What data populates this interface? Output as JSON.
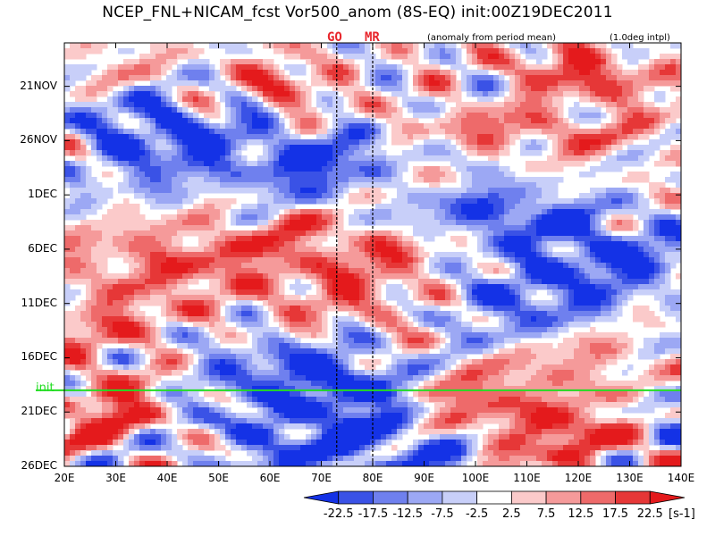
{
  "chart_data": {
    "type": "heatmap",
    "title": "NCEP_FNL+NICAM_fcst Vor500_anom (8S-EQ) init:00Z19DEC2011",
    "note_left": "(anomaly from period mean)",
    "note_right": "(1.0deg intpl)",
    "x_axis": {
      "range": [
        20,
        140
      ],
      "ticks": [
        {
          "value": 20,
          "label": "20E"
        },
        {
          "value": 30,
          "label": "30E"
        },
        {
          "value": 40,
          "label": "40E"
        },
        {
          "value": 50,
          "label": "50E"
        },
        {
          "value": 60,
          "label": "60E"
        },
        {
          "value": 70,
          "label": "70E"
        },
        {
          "value": 80,
          "label": "80E"
        },
        {
          "value": 90,
          "label": "90E"
        },
        {
          "value": 100,
          "label": "100E"
        },
        {
          "value": 110,
          "label": "110E"
        },
        {
          "value": 120,
          "label": "120E"
        },
        {
          "value": 130,
          "label": "130E"
        },
        {
          "value": 140,
          "label": "140E"
        }
      ]
    },
    "y_axis": {
      "range": [
        "2011-11-17",
        "2011-12-26"
      ],
      "direction": "time increases downward",
      "ticks": [
        {
          "date": "2011-11-21",
          "label": "21NOV"
        },
        {
          "date": "2011-11-26",
          "label": "26NOV"
        },
        {
          "date": "2011-12-01",
          "label": "1DEC"
        },
        {
          "date": "2011-12-06",
          "label": "6DEC"
        },
        {
          "date": "2011-12-11",
          "label": "11DEC"
        },
        {
          "date": "2011-12-16",
          "label": "16DEC"
        },
        {
          "date": "2011-12-21",
          "label": "21DEC"
        },
        {
          "date": "2011-12-26",
          "label": "26DEC"
        }
      ]
    },
    "markers": [
      {
        "label": "GO",
        "longitude": 73,
        "color": "#e8262c"
      },
      {
        "label": "MR",
        "longitude": 80,
        "color": "#e8262c"
      }
    ],
    "init_line": {
      "label": "init",
      "date": "2011-12-19",
      "color": "#22dd22"
    },
    "colorbar": {
      "unit": "[s-1]",
      "levels": [
        -22.5,
        -17.5,
        -12.5,
        -7.5,
        -2.5,
        2.5,
        7.5,
        12.5,
        17.5,
        22.5
      ],
      "labels": [
        "-22.5",
        "-17.5",
        "-12.5",
        "-7.5",
        "-2.5",
        "2.5",
        "7.5",
        "12.5",
        "17.5",
        "22.5"
      ],
      "colors": [
        "#1432e6",
        "#3a52e6",
        "#6f80ee",
        "#9ca8f4",
        "#c8cff9",
        "#ffffff",
        "#fbcaca",
        "#f59a9a",
        "#ee6a6a",
        "#e63737",
        "#e41a1c"
      ]
    },
    "features": [
      {
        "type": "positive",
        "lon": 63,
        "date": "2011-11-21",
        "strength": 20,
        "lon_width": 6,
        "time_width_days": 1.8,
        "tilt_deg_per_day": 0.0
      },
      {
        "type": "positive",
        "lon": 122,
        "date": "2011-11-20",
        "strength": 20,
        "lon_width": 10,
        "time_width_days": 2.0,
        "tilt_deg_per_day": 3.0
      },
      {
        "type": "positive",
        "lon": 110,
        "date": "2011-11-25",
        "strength": 14,
        "lon_width": 16,
        "time_width_days": 1.5,
        "tilt_deg_per_day": 4.0
      },
      {
        "type": "positive",
        "lon": 35,
        "date": "2011-11-20",
        "strength": 10,
        "lon_width": 8,
        "time_width_days": 2.0,
        "tilt_deg_per_day": 0.0
      },
      {
        "type": "negative",
        "lon": 35,
        "date": "2011-11-24",
        "strength": 14,
        "lon_width": 8,
        "time_width_days": 3.0,
        "tilt_deg_per_day": 0.0
      },
      {
        "type": "negative",
        "lon": 50,
        "date": "2011-11-27",
        "strength": 16,
        "lon_width": 18,
        "time_width_days": 3.0,
        "tilt_deg_per_day": 0.0
      },
      {
        "type": "negative",
        "lon": 75,
        "date": "2011-11-29",
        "strength": 22,
        "lon_width": 10,
        "time_width_days": 2.0,
        "tilt_deg_per_day": 0.0
      },
      {
        "type": "positive",
        "lon": 85,
        "date": "2011-11-30",
        "strength": 22,
        "lon_width": 8,
        "time_width_days": 1.5,
        "tilt_deg_per_day": 0.0
      },
      {
        "type": "negative",
        "lon": 95,
        "date": "2011-12-02",
        "strength": 18,
        "lon_width": 12,
        "time_width_days": 2.0,
        "tilt_deg_per_day": 0.0
      },
      {
        "type": "negative",
        "lon": 112,
        "date": "2011-12-03",
        "strength": 12,
        "lon_width": 10,
        "time_width_days": 1.5,
        "tilt_deg_per_day": 0.0
      },
      {
        "type": "positive",
        "lon": 40,
        "date": "2011-12-07",
        "strength": 14,
        "lon_width": 14,
        "time_width_days": 2.5,
        "tilt_deg_per_day": 0.0
      },
      {
        "type": "positive",
        "lon": 72,
        "date": "2011-12-05",
        "strength": 12,
        "lon_width": 16,
        "time_width_days": 2.5,
        "tilt_deg_per_day": 0.0
      },
      {
        "type": "negative",
        "lon": 128,
        "date": "2011-12-06",
        "strength": 14,
        "lon_width": 12,
        "time_width_days": 2.0,
        "tilt_deg_per_day": 0.0
      },
      {
        "type": "negative",
        "lon": 118,
        "date": "2011-12-09",
        "strength": 16,
        "lon_width": 14,
        "time_width_days": 3.0,
        "tilt_deg_per_day": 0.0
      },
      {
        "type": "negative",
        "lon": 103,
        "date": "2011-12-12",
        "strength": 14,
        "lon_width": 10,
        "time_width_days": 3.0,
        "tilt_deg_per_day": 0.0
      },
      {
        "type": "positive",
        "lon": 80,
        "date": "2011-12-10",
        "strength": 12,
        "lon_width": 18,
        "time_width_days": 3.0,
        "tilt_deg_per_day": 0.0
      },
      {
        "type": "positive",
        "lon": 30,
        "date": "2011-12-13",
        "strength": 12,
        "lon_width": 10,
        "time_width_days": 2.5,
        "tilt_deg_per_day": 0.0
      },
      {
        "type": "positive",
        "lon": 120,
        "date": "2011-12-16",
        "strength": 10,
        "lon_width": 14,
        "time_width_days": 2.0,
        "tilt_deg_per_day": 0.0
      },
      {
        "type": "negative",
        "lon": 57,
        "date": "2011-12-16",
        "strength": 10,
        "lon_width": 12,
        "time_width_days": 2.0,
        "tilt_deg_per_day": 0.0
      },
      {
        "type": "negative",
        "lon": 75,
        "date": "2011-12-18",
        "strength": 14,
        "lon_width": 8,
        "time_width_days": 2.0,
        "tilt_deg_per_day": 0.0
      },
      {
        "type": "positive",
        "lon": 30,
        "date": "2011-12-21",
        "strength": 20,
        "lon_width": 8,
        "time_width_days": 2.5,
        "tilt_deg_per_day": 0.0
      },
      {
        "type": "negative",
        "lon": 68,
        "date": "2011-12-22",
        "strength": 20,
        "lon_width": 16,
        "time_width_days": 4.0,
        "tilt_deg_per_day": 0.0
      },
      {
        "type": "positive",
        "lon": 100,
        "date": "2011-12-21",
        "strength": 20,
        "lon_width": 10,
        "time_width_days": 3.0,
        "tilt_deg_per_day": 0.0
      },
      {
        "type": "negative",
        "lon": 88,
        "date": "2011-12-24",
        "strength": 18,
        "lon_width": 10,
        "time_width_days": 2.0,
        "tilt_deg_per_day": 0.0
      },
      {
        "type": "negative",
        "lon": 135,
        "date": "2011-12-21",
        "strength": 20,
        "lon_width": 4,
        "time_width_days": 1.5,
        "tilt_deg_per_day": 0.0
      },
      {
        "type": "positive",
        "lon": 122,
        "date": "2011-12-23",
        "strength": 18,
        "lon_width": 10,
        "time_width_days": 2.5,
        "tilt_deg_per_day": 0.0
      }
    ]
  }
}
